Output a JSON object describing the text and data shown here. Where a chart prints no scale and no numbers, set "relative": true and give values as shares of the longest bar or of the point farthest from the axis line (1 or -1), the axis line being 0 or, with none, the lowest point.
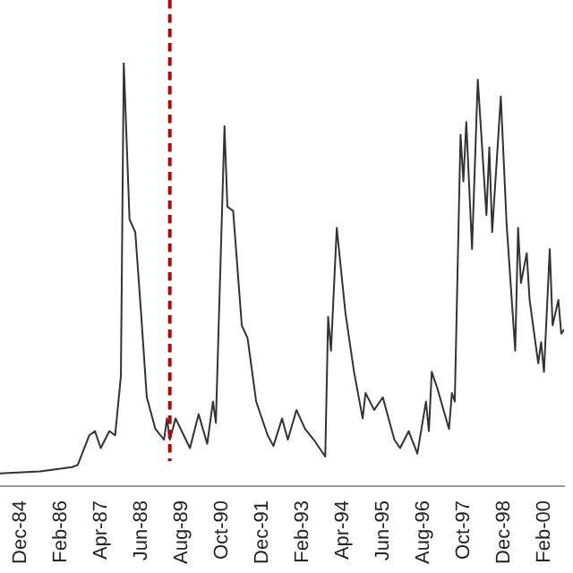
{
  "chart_data": {
    "type": "line",
    "relative": true,
    "tick_labels": "x",
    "grid": false,
    "legend": false,
    "marker": "none",
    "line_style": "solid",
    "x": [
      "1984-05",
      "1985-07",
      "1986-06",
      "1986-08",
      "1986-12",
      "1987-02",
      "1987-04",
      "1987-07",
      "1987-09",
      "1987-11",
      "1987-12",
      "1988-02",
      "1988-04",
      "1988-06",
      "1988-08",
      "1988-11",
      "1989-02",
      "1989-03",
      "1989-04",
      "1989-06",
      "1989-11",
      "1990-02",
      "1990-05",
      "1990-07",
      "1990-08",
      "1990-11",
      "1990-12",
      "1991-02",
      "1991-03",
      "1991-05",
      "1991-07",
      "1991-10",
      "1992-02",
      "1992-04",
      "1992-07",
      "1992-09",
      "1992-12",
      "1993-03",
      "1993-06",
      "1993-10",
      "1993-11",
      "1993-12",
      "1994-02",
      "1994-05",
      "1994-08",
      "1994-11",
      "1994-12",
      "1995-03",
      "1995-06",
      "1995-10",
      "1995-12",
      "1996-03",
      "1996-06",
      "1996-09",
      "1996-10",
      "1996-11",
      "1997-01",
      "1997-05",
      "1997-06",
      "1997-07",
      "1997-09",
      "1997-10",
      "1997-11",
      "1998-01",
      "1998-03",
      "1998-06",
      "1998-07",
      "1998-08",
      "1998-11",
      "1999-01",
      "1999-04",
      "1999-05",
      "1999-06",
      "1999-08",
      "1999-09",
      "1999-12",
      "2000-01",
      "2000-02",
      "2000-04",
      "2000-05",
      "2000-07",
      "2000-08",
      "2000-09"
    ],
    "series": [
      {
        "color": "#333333",
        "values": [
          0.03,
          0.035,
          0.045,
          0.05,
          0.12,
          0.13,
          0.09,
          0.13,
          0.12,
          0.26,
          1.0,
          0.63,
          0.6,
          0.41,
          0.21,
          0.135,
          0.11,
          0.16,
          0.11,
          0.16,
          0.09,
          0.17,
          0.1,
          0.2,
          0.15,
          0.85,
          0.66,
          0.65,
          0.56,
          0.38,
          0.35,
          0.2,
          0.12,
          0.095,
          0.16,
          0.11,
          0.18,
          0.135,
          0.11,
          0.07,
          0.4,
          0.32,
          0.61,
          0.41,
          0.27,
          0.16,
          0.22,
          0.18,
          0.21,
          0.11,
          0.09,
          0.13,
          0.077,
          0.2,
          0.13,
          0.27,
          0.23,
          0.135,
          0.22,
          0.2,
          0.83,
          0.72,
          0.86,
          0.56,
          0.96,
          0.64,
          0.8,
          0.6,
          0.92,
          0.62,
          0.32,
          0.61,
          0.48,
          0.55,
          0.44,
          0.29,
          0.34,
          0.27,
          0.56,
          0.38,
          0.44,
          0.36,
          0.37
        ]
      }
    ],
    "xlim": [
      "1984-05",
      "2000-09"
    ],
    "xticks": [
      {
        "value": "1984-12",
        "label": "Dec-84"
      },
      {
        "value": "1986-02",
        "label": "Feb-86"
      },
      {
        "value": "1987-04",
        "label": "Apr-87"
      },
      {
        "value": "1988-06",
        "label": "Jun-88"
      },
      {
        "value": "1989-08",
        "label": "Aug-89"
      },
      {
        "value": "1990-10",
        "label": "Oct-90"
      },
      {
        "value": "1991-12",
        "label": "Dec-91"
      },
      {
        "value": "1993-02",
        "label": "Feb-93"
      },
      {
        "value": "1994-04",
        "label": "Apr-94"
      },
      {
        "value": "1995-06",
        "label": "Jun-95"
      },
      {
        "value": "1996-08",
        "label": "Aug-96"
      },
      {
        "value": "1997-10",
        "label": "Oct-97"
      },
      {
        "value": "1998-12",
        "label": "Dec-98"
      },
      {
        "value": "2000-02",
        "label": "Feb-00"
      }
    ],
    "ref_lines": [
      {
        "axis": "x",
        "value": "1989-04",
        "color": "#c00000",
        "line_style": "dashed"
      }
    ]
  }
}
